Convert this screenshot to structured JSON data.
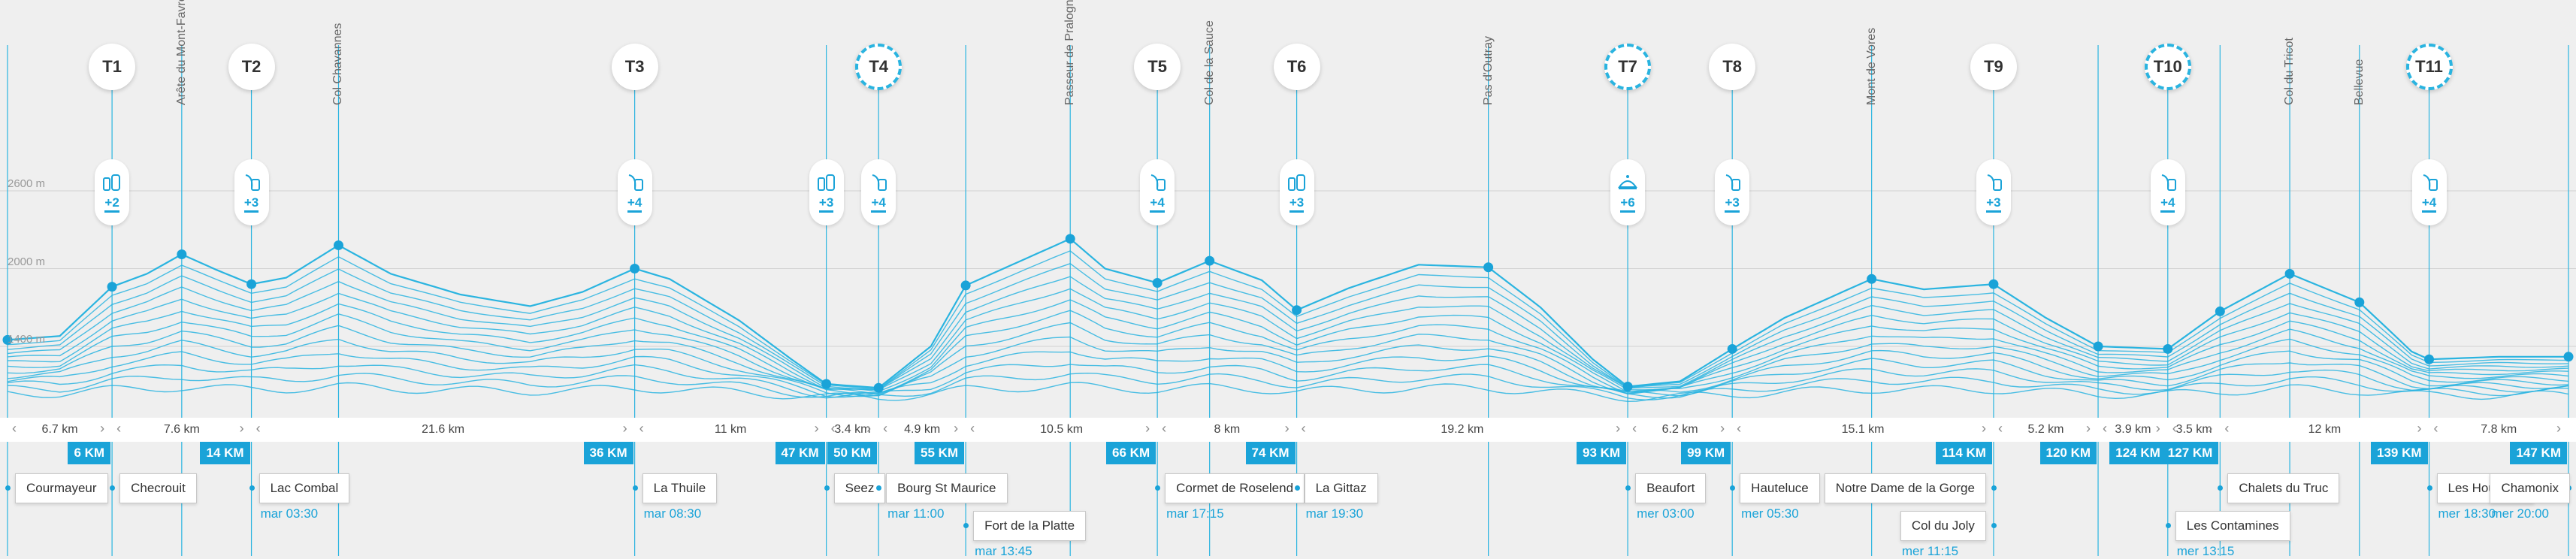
{
  "colors": {
    "accent": "#1aa3d8",
    "line": "#2ab4e0",
    "background": "#efefef"
  },
  "altitude_labels": [
    "2600 m",
    "2000 m",
    "1400 m"
  ],
  "refuges": [
    {
      "id": "T1",
      "km": 6,
      "services": "+2",
      "icon": "water-icon",
      "dashed": false
    },
    {
      "id": "T2",
      "km": 14,
      "services": "+3",
      "icon": "food-icon",
      "dashed": false
    },
    {
      "id": "T3",
      "km": 36,
      "services": "+4",
      "icon": "food-icon",
      "dashed": false
    },
    {
      "id": "T4",
      "km": 50,
      "services": "+4",
      "icon": "food-icon",
      "dashed": true
    },
    {
      "id": "T5",
      "km": 66,
      "services": "+4",
      "icon": "food-icon",
      "dashed": false
    },
    {
      "id": "T6",
      "km": 74,
      "services": "+3",
      "icon": "water-icon",
      "dashed": false
    },
    {
      "id": "T7",
      "km": 93,
      "services": "+6",
      "icon": "meal-icon",
      "dashed": true
    },
    {
      "id": "T8",
      "km": 99,
      "services": "+3",
      "icon": "food-icon",
      "dashed": false
    },
    {
      "id": "T9",
      "km": 114,
      "services": "+3",
      "icon": "food-icon",
      "dashed": false
    },
    {
      "id": "T10",
      "km": 124,
      "services": "+4",
      "icon": "food-icon",
      "dashed": true
    },
    {
      "id": "T11",
      "km": 139,
      "services": "+4",
      "icon": "food-icon",
      "dashed": true
    }
  ],
  "extra_services": [
    {
      "km": 47,
      "services": "+3",
      "icon": "water-icon"
    }
  ],
  "summits": [
    {
      "name": "Arête du Mont-Favre",
      "km": 10
    },
    {
      "name": "Col Chavannes",
      "km": 19
    },
    {
      "name": "Passeur de Pralognan",
      "km": 61
    },
    {
      "name": "Col de la Sauce",
      "km": 69
    },
    {
      "name": "Pas d'Outray",
      "km": 85
    },
    {
      "name": "Mont de Vores",
      "km": 107
    },
    {
      "name": "Col du Tricot",
      "km": 131
    },
    {
      "name": "Bellevue",
      "km": 135
    }
  ],
  "segments": [
    "6.7 km",
    "7.6 km",
    "21.6 km",
    "11 km",
    "3.4 km",
    "4.9 km",
    "10.5 km",
    "8 km",
    "19.2 km",
    "6.2 km",
    "15.1 km",
    "5.2 km",
    "3.9 km",
    "3.5 km",
    "12 km",
    "7.8 km"
  ],
  "km_markers": [
    "6 KM",
    "14 KM",
    "36 KM",
    "47 KM",
    "50 KM",
    "55 KM",
    "66 KM",
    "74 KM",
    "93 KM",
    "99 KM",
    "114 KM",
    "120 KM",
    "124 KM",
    "127 KM",
    "139 KM",
    "147 KM"
  ],
  "places": [
    {
      "name": "Courmayeur",
      "time": ""
    },
    {
      "name": "Checrouit",
      "time": ""
    },
    {
      "name": "Lac Combal",
      "time": "mar 03:30"
    },
    {
      "name": "La Thuile",
      "time": "mar 08:30"
    },
    {
      "name": "Seez",
      "time": ""
    },
    {
      "name": "Bourg St Maurice",
      "time": "mar 11:00"
    },
    {
      "name": "Fort de la Platte",
      "time": "mar 13:45"
    },
    {
      "name": "Cormet de Roselend",
      "time": "mar 17:15"
    },
    {
      "name": "La Gittaz",
      "time": "mar 19:30"
    },
    {
      "name": "Beaufort",
      "time": "mer 03:00"
    },
    {
      "name": "Hauteluce",
      "time": "mer 05:30"
    },
    {
      "name": "Notre Dame de la Gorge",
      "time": ""
    },
    {
      "name": "Col du Joly",
      "time": "mer 11:15"
    },
    {
      "name": "Les Contamines",
      "time": "mer 13:15"
    },
    {
      "name": "Chalets du Truc",
      "time": ""
    },
    {
      "name": "Les Houches",
      "time": "mer 18:30"
    },
    {
      "name": "Chamonix",
      "time": "mer 20:00"
    }
  ],
  "profile": {
    "max_km": 147,
    "alt_min": 1000,
    "alt_max": 2800,
    "points": [
      [
        0,
        1450
      ],
      [
        3,
        1480
      ],
      [
        6,
        1860
      ],
      [
        8,
        1960
      ],
      [
        10,
        2110
      ],
      [
        12,
        1990
      ],
      [
        14,
        1880
      ],
      [
        16,
        1930
      ],
      [
        19,
        2180
      ],
      [
        22,
        1960
      ],
      [
        26,
        1800
      ],
      [
        30,
        1710
      ],
      [
        33,
        1820
      ],
      [
        36,
        2000
      ],
      [
        38,
        1920
      ],
      [
        42,
        1600
      ],
      [
        45,
        1300
      ],
      [
        47,
        1110
      ],
      [
        50,
        1080
      ],
      [
        53,
        1400
      ],
      [
        55,
        1870
      ],
      [
        58,
        2050
      ],
      [
        61,
        2230
      ],
      [
        63,
        2000
      ],
      [
        66,
        1890
      ],
      [
        69,
        2060
      ],
      [
        72,
        1910
      ],
      [
        74,
        1680
      ],
      [
        77,
        1850
      ],
      [
        81,
        2030
      ],
      [
        85,
        2010
      ],
      [
        88,
        1700
      ],
      [
        91,
        1300
      ],
      [
        93,
        1090
      ],
      [
        96,
        1130
      ],
      [
        99,
        1380
      ],
      [
        102,
        1620
      ],
      [
        107,
        1920
      ],
      [
        110,
        1840
      ],
      [
        114,
        1880
      ],
      [
        117,
        1620
      ],
      [
        120,
        1400
      ],
      [
        124,
        1380
      ],
      [
        127,
        1670
      ],
      [
        131,
        1960
      ],
      [
        135,
        1740
      ],
      [
        138,
        1360
      ],
      [
        139,
        1300
      ],
      [
        143,
        1320
      ],
      [
        147,
        1320
      ]
    ],
    "markers_km": [
      0,
      6,
      10,
      14,
      19,
      36,
      47,
      50,
      55,
      61,
      66,
      69,
      74,
      85,
      93,
      99,
      107,
      114,
      120,
      124,
      127,
      131,
      135,
      139,
      147
    ]
  }
}
